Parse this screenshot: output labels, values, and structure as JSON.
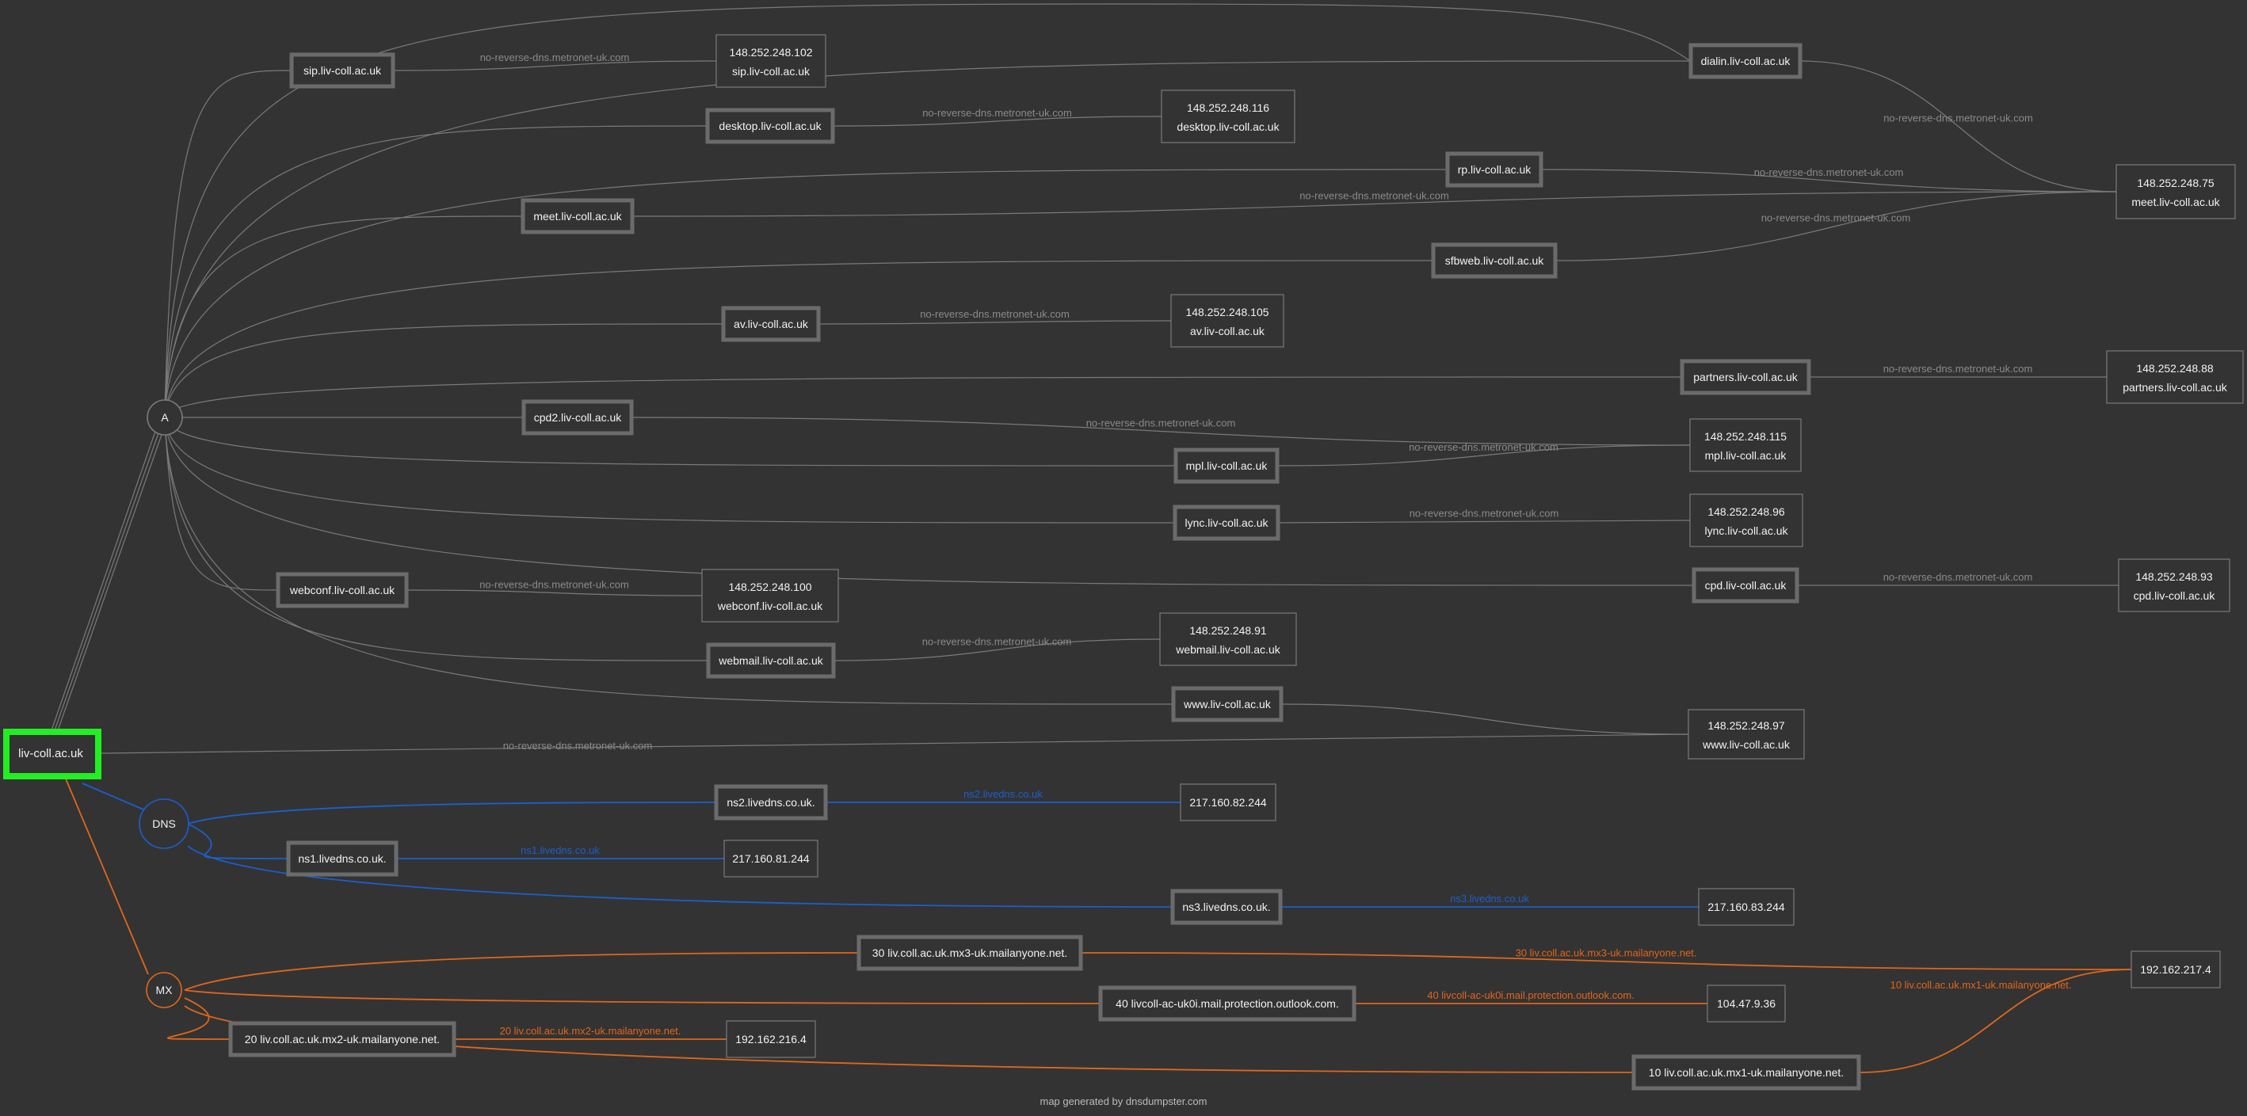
{
  "title": "liv-coll.ac.uk",
  "footer": "map generated by dnsdumpster.com",
  "colors": {
    "background": "#333333",
    "grey": "#7a7a7a",
    "root": "#22ee22",
    "dns": "#1a5fd0",
    "mx": "#e0661a",
    "text": "#f2f2f2",
    "label_grey": "#8a8a8a"
  },
  "root": {
    "label": "liv-coll.ac.uk"
  },
  "hubs": {
    "a": "A",
    "dns": "DNS",
    "mx": "MX"
  },
  "a_records": [
    {
      "host": "sip.liv-coll.ac.uk",
      "reverse": "no-reverse-dns.metronet-uk.com",
      "ip": "148.252.248.102",
      "ip_host": "sip.liv-coll.ac.uk"
    },
    {
      "host": "desktop.liv-coll.ac.uk",
      "reverse": "no-reverse-dns.metronet-uk.com",
      "ip": "148.252.248.116",
      "ip_host": "desktop.liv-coll.ac.uk"
    },
    {
      "host": "dialin.liv-coll.ac.uk",
      "reverse": "no-reverse-dns.metronet-uk.com",
      "ip": "148.252.248.75",
      "ip_host": "meet.liv-coll.ac.uk"
    },
    {
      "host": "rp.liv-coll.ac.uk",
      "reverse": "no-reverse-dns.metronet-uk.com",
      "ip": "148.252.248.75",
      "ip_host": "meet.liv-coll.ac.uk"
    },
    {
      "host": "meet.liv-coll.ac.uk",
      "reverse": "no-reverse-dns.metronet-uk.com",
      "ip": "148.252.248.75",
      "ip_host": "meet.liv-coll.ac.uk"
    },
    {
      "host": "sfbweb.liv-coll.ac.uk",
      "reverse": "no-reverse-dns.metronet-uk.com",
      "ip": "148.252.248.75",
      "ip_host": "meet.liv-coll.ac.uk"
    },
    {
      "host": "av.liv-coll.ac.uk",
      "reverse": "no-reverse-dns.metronet-uk.com",
      "ip": "148.252.248.105",
      "ip_host": "av.liv-coll.ac.uk"
    },
    {
      "host": "partners.liv-coll.ac.uk",
      "reverse": "no-reverse-dns.metronet-uk.com",
      "ip": "148.252.248.88",
      "ip_host": "partners.liv-coll.ac.uk"
    },
    {
      "host": "cpd2.liv-coll.ac.uk",
      "reverse": "no-reverse-dns.metronet-uk.com",
      "ip": "148.252.248.115",
      "ip_host": "mpl.liv-coll.ac.uk"
    },
    {
      "host": "mpl.liv-coll.ac.uk",
      "reverse": "no-reverse-dns.metronet-uk.com",
      "ip": "148.252.248.115",
      "ip_host": "mpl.liv-coll.ac.uk"
    },
    {
      "host": "lync.liv-coll.ac.uk",
      "reverse": "no-reverse-dns.metronet-uk.com",
      "ip": "148.252.248.96",
      "ip_host": "lync.liv-coll.ac.uk"
    },
    {
      "host": "cpd.liv-coll.ac.uk",
      "reverse": "no-reverse-dns.metronet-uk.com",
      "ip": "148.252.248.93",
      "ip_host": "cpd.liv-coll.ac.uk"
    },
    {
      "host": "webconf.liv-coll.ac.uk",
      "reverse": "no-reverse-dns.metronet-uk.com",
      "ip": "148.252.248.100",
      "ip_host": "webconf.liv-coll.ac.uk"
    },
    {
      "host": "webmail.liv-coll.ac.uk",
      "reverse": "no-reverse-dns.metronet-uk.com",
      "ip": "148.252.248.91",
      "ip_host": "webmail.liv-coll.ac.uk"
    },
    {
      "host": "www.liv-coll.ac.uk",
      "ip": "148.252.248.97",
      "ip_host": "www.liv-coll.ac.uk"
    }
  ],
  "root_reverse_label": "no-reverse-dns.metronet-uk.com",
  "ns_records": [
    {
      "host": "ns2.livedns.co.uk.",
      "reverse": "ns2.livedns.co.uk",
      "ip": "217.160.82.244"
    },
    {
      "host": "ns1.livedns.co.uk.",
      "reverse": "ns1.livedns.co.uk",
      "ip": "217.160.81.244"
    },
    {
      "host": "ns3.livedns.co.uk.",
      "reverse": "ns3.livedns.co.uk",
      "ip": "217.160.83.244"
    }
  ],
  "mx_records": [
    {
      "host": "30 liv.coll.ac.uk.mx3-uk.mailanyone.net.",
      "reverse": "30 liv.coll.ac.uk.mx3-uk.mailanyone.net.",
      "ip": "192.162.217.4"
    },
    {
      "host": "40 livcoll-ac-uk0i.mail.protection.outlook.com.",
      "reverse": "40 livcoll-ac-uk0i.mail.protection.outlook.com.",
      "ip": "104.47.9.36"
    },
    {
      "host": "20 liv.coll.ac.uk.mx2-uk.mailanyone.net.",
      "reverse": "20 liv.coll.ac.uk.mx2-uk.mailanyone.net.",
      "ip": "192.162.216.4"
    },
    {
      "host": "10 liv.coll.ac.uk.mx1-uk.mailanyone.net.",
      "reverse": "10 liv.coll.ac.uk.mx1-uk.mailanyone.net.",
      "ip": "192.162.217.4"
    }
  ]
}
